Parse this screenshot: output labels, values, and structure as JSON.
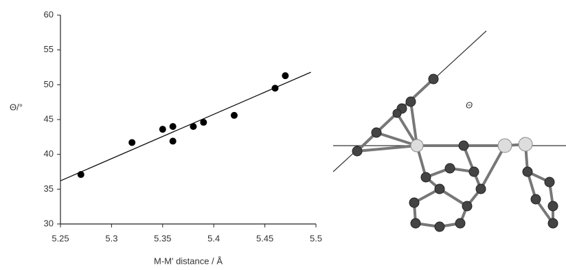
{
  "chart_data": {
    "type": "scatter",
    "y_label": "Θ/°",
    "x_label": "M-M' distance / Å",
    "x": [
      5.27,
      5.32,
      5.35,
      5.36,
      5.36,
      5.38,
      5.39,
      5.42,
      5.46,
      5.47
    ],
    "values": [
      37.1,
      41.7,
      43.6,
      44.0,
      41.9,
      44.0,
      44.6,
      45.6,
      49.5,
      51.3
    ],
    "color": "#000000",
    "trendline": {
      "x": [
        5.25,
        5.495
      ],
      "y": [
        36.2,
        51.8
      ]
    },
    "xlim": [
      5.25,
      5.5
    ],
    "xticks": [
      5.25,
      5.3,
      5.35,
      5.4,
      5.45,
      5.5
    ],
    "ylim": [
      30,
      60
    ],
    "yticks": [
      30,
      35,
      40,
      45,
      50,
      55,
      60
    ],
    "grid": false
  },
  "figure_label": "Θ"
}
